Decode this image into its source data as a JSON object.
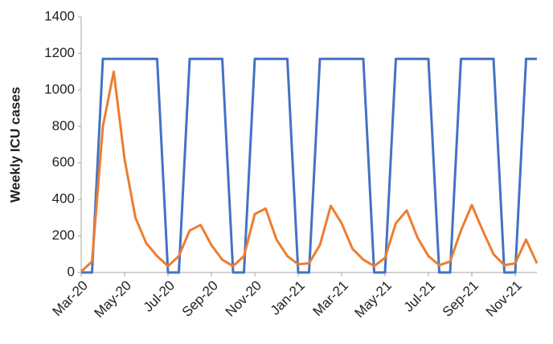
{
  "chart_data": {
    "type": "line",
    "y_label": "Weekly ICU cases",
    "categories": [
      "Mar-20",
      null,
      null,
      null,
      "May-20",
      null,
      null,
      null,
      "Jul-20",
      null,
      null,
      null,
      "Sep-20",
      null,
      null,
      null,
      "Nov-20",
      null,
      null,
      null,
      "Jan-21",
      null,
      null,
      null,
      "Mar-21",
      null,
      null,
      null,
      "May-21",
      null,
      null,
      null,
      "Jul-21",
      null,
      null,
      null,
      "Sep-21",
      null,
      null,
      null,
      "Nov-21",
      null,
      null
    ],
    "series": [
      {
        "color": "#4472c4",
        "values": [
          0,
          0,
          1170,
          1170,
          1170,
          1170,
          1170,
          1170,
          0,
          0,
          1170,
          1170,
          1170,
          1170,
          0,
          0,
          1170,
          1170,
          1170,
          1170,
          0,
          0,
          1170,
          1170,
          1170,
          1170,
          1170,
          0,
          0,
          1170,
          1170,
          1170,
          1170,
          0,
          0,
          1170,
          1170,
          1170,
          1170,
          0,
          0,
          1170,
          1170
        ]
      },
      {
        "color": "#ed7d31",
        "values": [
          5,
          60,
          800,
          1100,
          620,
          300,
          160,
          90,
          35,
          90,
          230,
          260,
          150,
          70,
          35,
          90,
          320,
          350,
          180,
          90,
          45,
          50,
          150,
          365,
          270,
          130,
          70,
          35,
          80,
          270,
          340,
          190,
          90,
          40,
          60,
          230,
          370,
          230,
          100,
          40,
          50,
          180,
          50
        ]
      }
    ],
    "ylim": [
      0,
      1400
    ],
    "yticks": [
      0,
      200,
      400,
      600,
      800,
      1000,
      1200,
      1400
    ],
    "grid": false
  }
}
